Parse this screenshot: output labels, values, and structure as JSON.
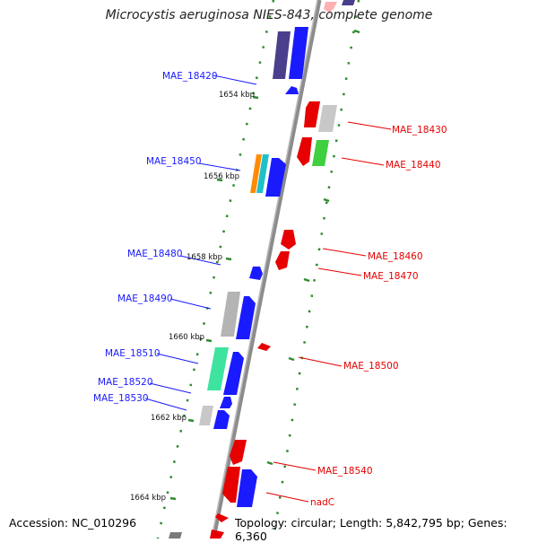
{
  "title": "Microcystis aeruginosa NIES-843, complete genome",
  "accession_text": "Accession: NC_010296",
  "topology_text": "Topology: circular; Length: 5,842,795 bp; Genes: 6,360",
  "kbp_labels": [
    "1654 kbp",
    "1656 kbp",
    "1658 kbp",
    "1660 kbp",
    "1662 kbp",
    "1664 kbp"
  ],
  "gene_labels_left": [
    "MAE_18420",
    "MAE_18450",
    "MAE_18480",
    "MAE_18490",
    "MAE_18510",
    "MAE_18520",
    "MAE_18530"
  ],
  "gene_labels_right": [
    "MAE_18430",
    "MAE_18440",
    "MAE_18460",
    "MAE_18470",
    "MAE_18500",
    "MAE_18540",
    "nadC"
  ],
  "colors": {
    "forward_gene": "#1a1aff",
    "reverse_gene": "#e60000",
    "backbone": "#8c8c8c",
    "tick": "#2e8b2e",
    "label_blue": "#1a1aff",
    "label_red": "#e60000"
  }
}
